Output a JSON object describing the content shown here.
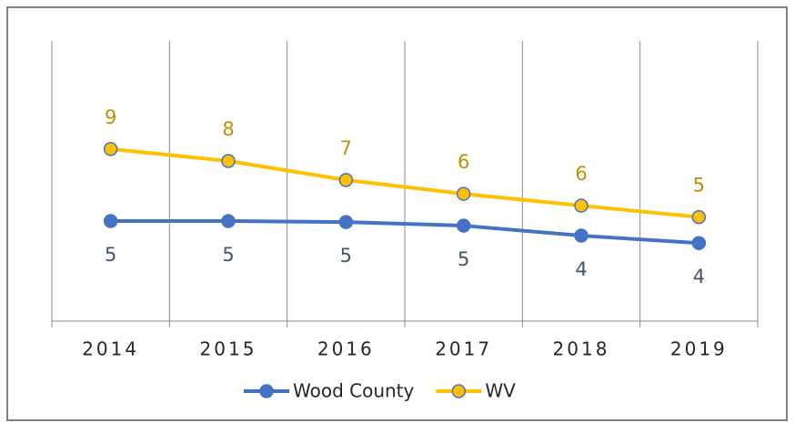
{
  "chart_data": {
    "type": "line",
    "categories": [
      "2014",
      "2015",
      "2016",
      "2017",
      "2018",
      "2019"
    ],
    "series": [
      {
        "name": "Wood County",
        "color": "#4472c4",
        "label_color": "#44546a",
        "values": [
          5.0,
          5.0,
          4.95,
          4.77,
          4.27,
          3.9
        ],
        "value_labels": [
          "5",
          "5",
          "5",
          "5",
          "4",
          "4"
        ]
      },
      {
        "name": "WV",
        "color": "#ffc000",
        "label_color": "#bf9000",
        "values": [
          8.6,
          8.0,
          7.05,
          6.36,
          5.77,
          5.2
        ],
        "value_labels": [
          "9",
          "8",
          "7",
          "6",
          "6",
          "5"
        ]
      }
    ],
    "ylim": [
      0,
      14
    ],
    "grid": true,
    "legend": "bottom"
  }
}
